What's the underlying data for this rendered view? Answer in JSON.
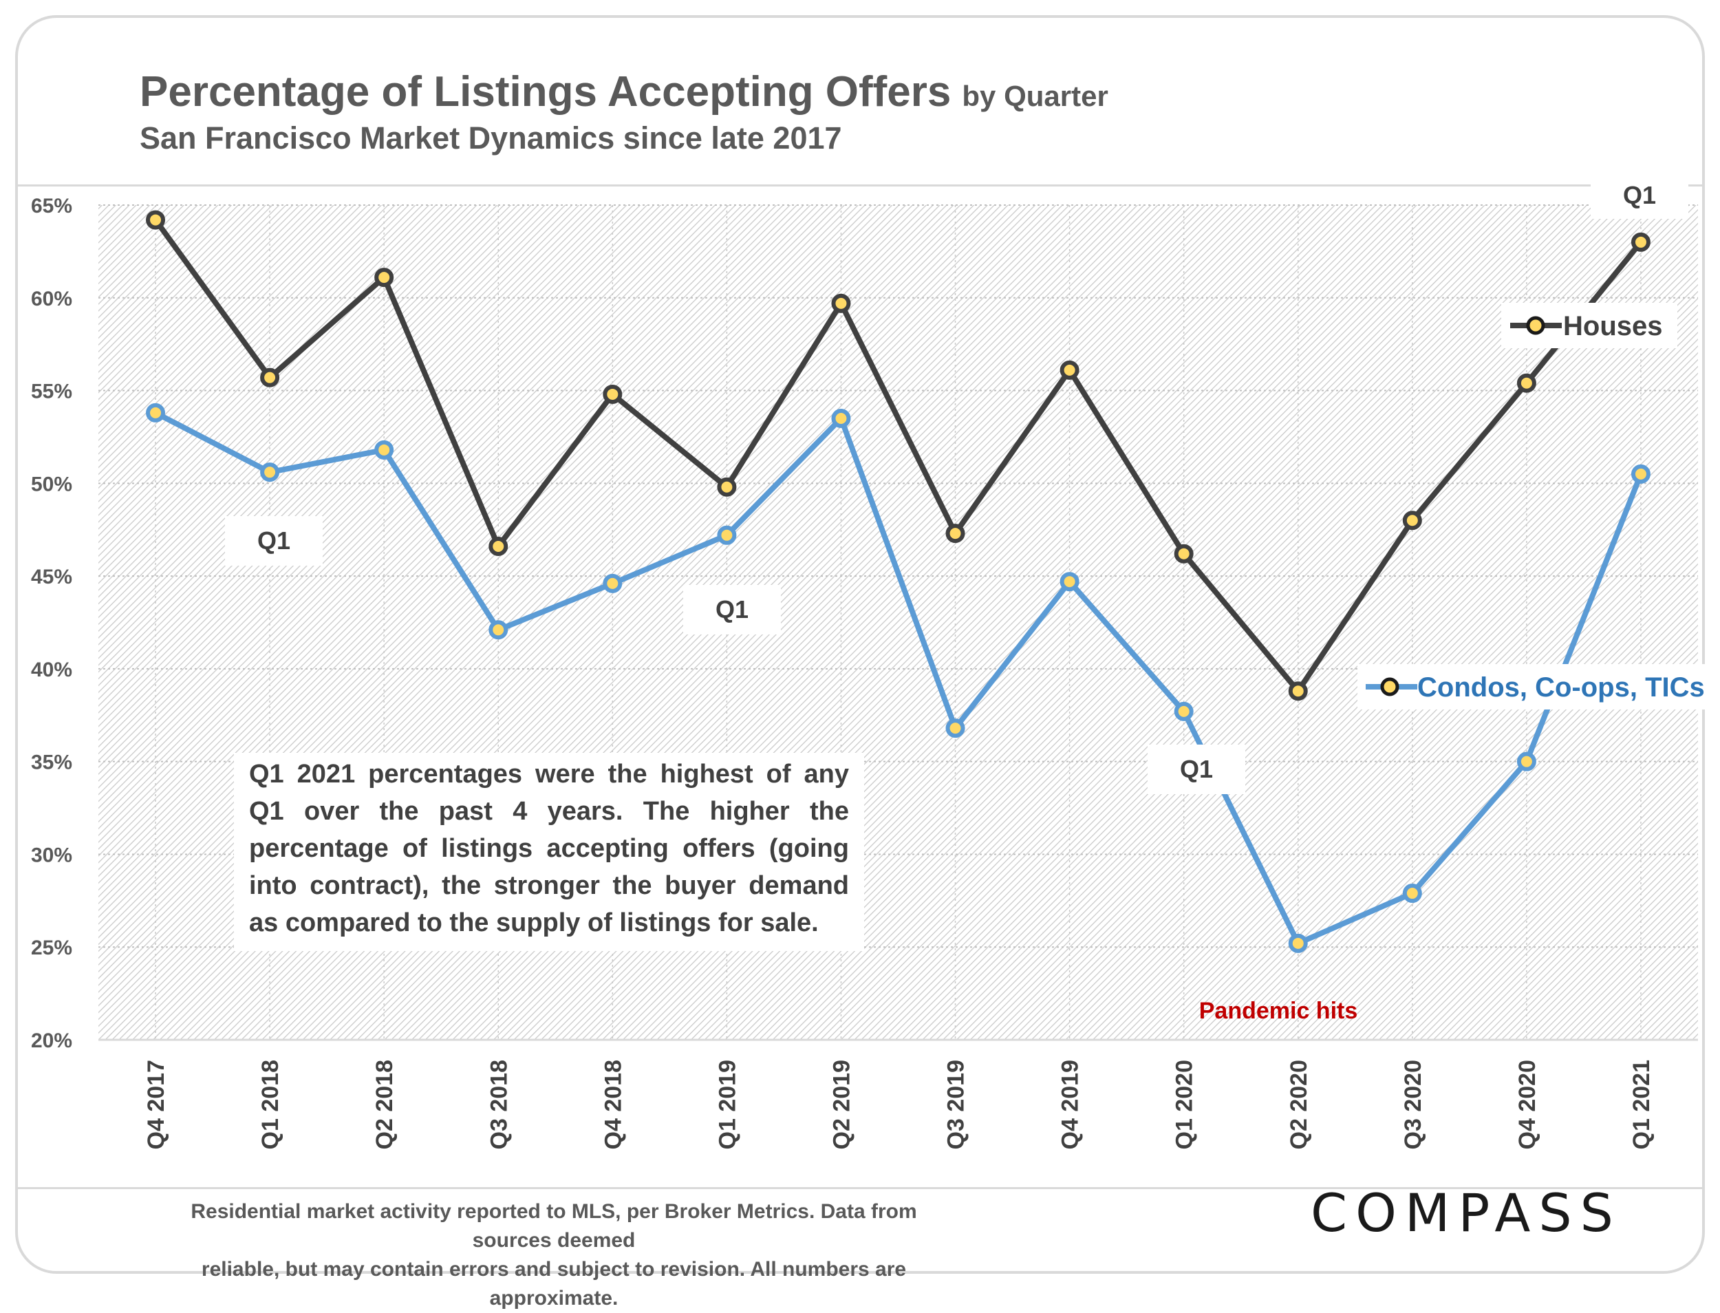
{
  "chart_data": {
    "type": "line",
    "title": "Percentage of Listings Accepting Offers",
    "title_suffix": "by Quarter",
    "subtitle": "San Francisco Market Dynamics since late 2017",
    "categories": [
      "Q4 2017",
      "Q1 2018",
      "Q2 2018",
      "Q3 2018",
      "Q4 2018",
      "Q1 2019",
      "Q2 2019",
      "Q3 2019",
      "Q4 2019",
      "Q1 2020",
      "Q2 2020",
      "Q3 2020",
      "Q4 2020",
      "Q1 2021"
    ],
    "series": [
      {
        "name": "Houses",
        "color": "#404040",
        "values": [
          64.2,
          55.7,
          61.1,
          46.6,
          54.8,
          49.8,
          59.7,
          47.3,
          56.1,
          46.2,
          38.8,
          48.0,
          55.4,
          63.0
        ]
      },
      {
        "name": "Condos, Co-ops, TICs",
        "color": "#5b9bd5",
        "values": [
          53.8,
          50.6,
          51.8,
          42.1,
          44.6,
          47.2,
          53.5,
          36.8,
          44.7,
          37.7,
          25.2,
          27.9,
          35.0,
          50.5
        ]
      }
    ],
    "ylim": [
      20,
      65
    ],
    "yticks": [
      "20%",
      "25%",
      "30%",
      "35%",
      "40%",
      "45%",
      "50%",
      "55%",
      "60%",
      "65%"
    ],
    "marker_fill": "#ffd966",
    "q1_labels": [
      "Q1",
      "Q1",
      "Q1",
      "Q1"
    ],
    "annotation_pandemic": "Pandemic hits",
    "legend": "right"
  },
  "note": "Q1 2021 percentages were the highest of any Q1 over the past 4 years. The higher the percentage of listings accepting offers (going into contract), the stronger the buyer demand as compared to the supply of listings for sale.",
  "footer": {
    "line1": "Residential market activity reported to MLS, per Broker Metrics. Data from sources deemed",
    "line2": "reliable, but may contain errors and subject to revision. All numbers are approximate."
  },
  "brand": {
    "logo": "COMPASS"
  }
}
